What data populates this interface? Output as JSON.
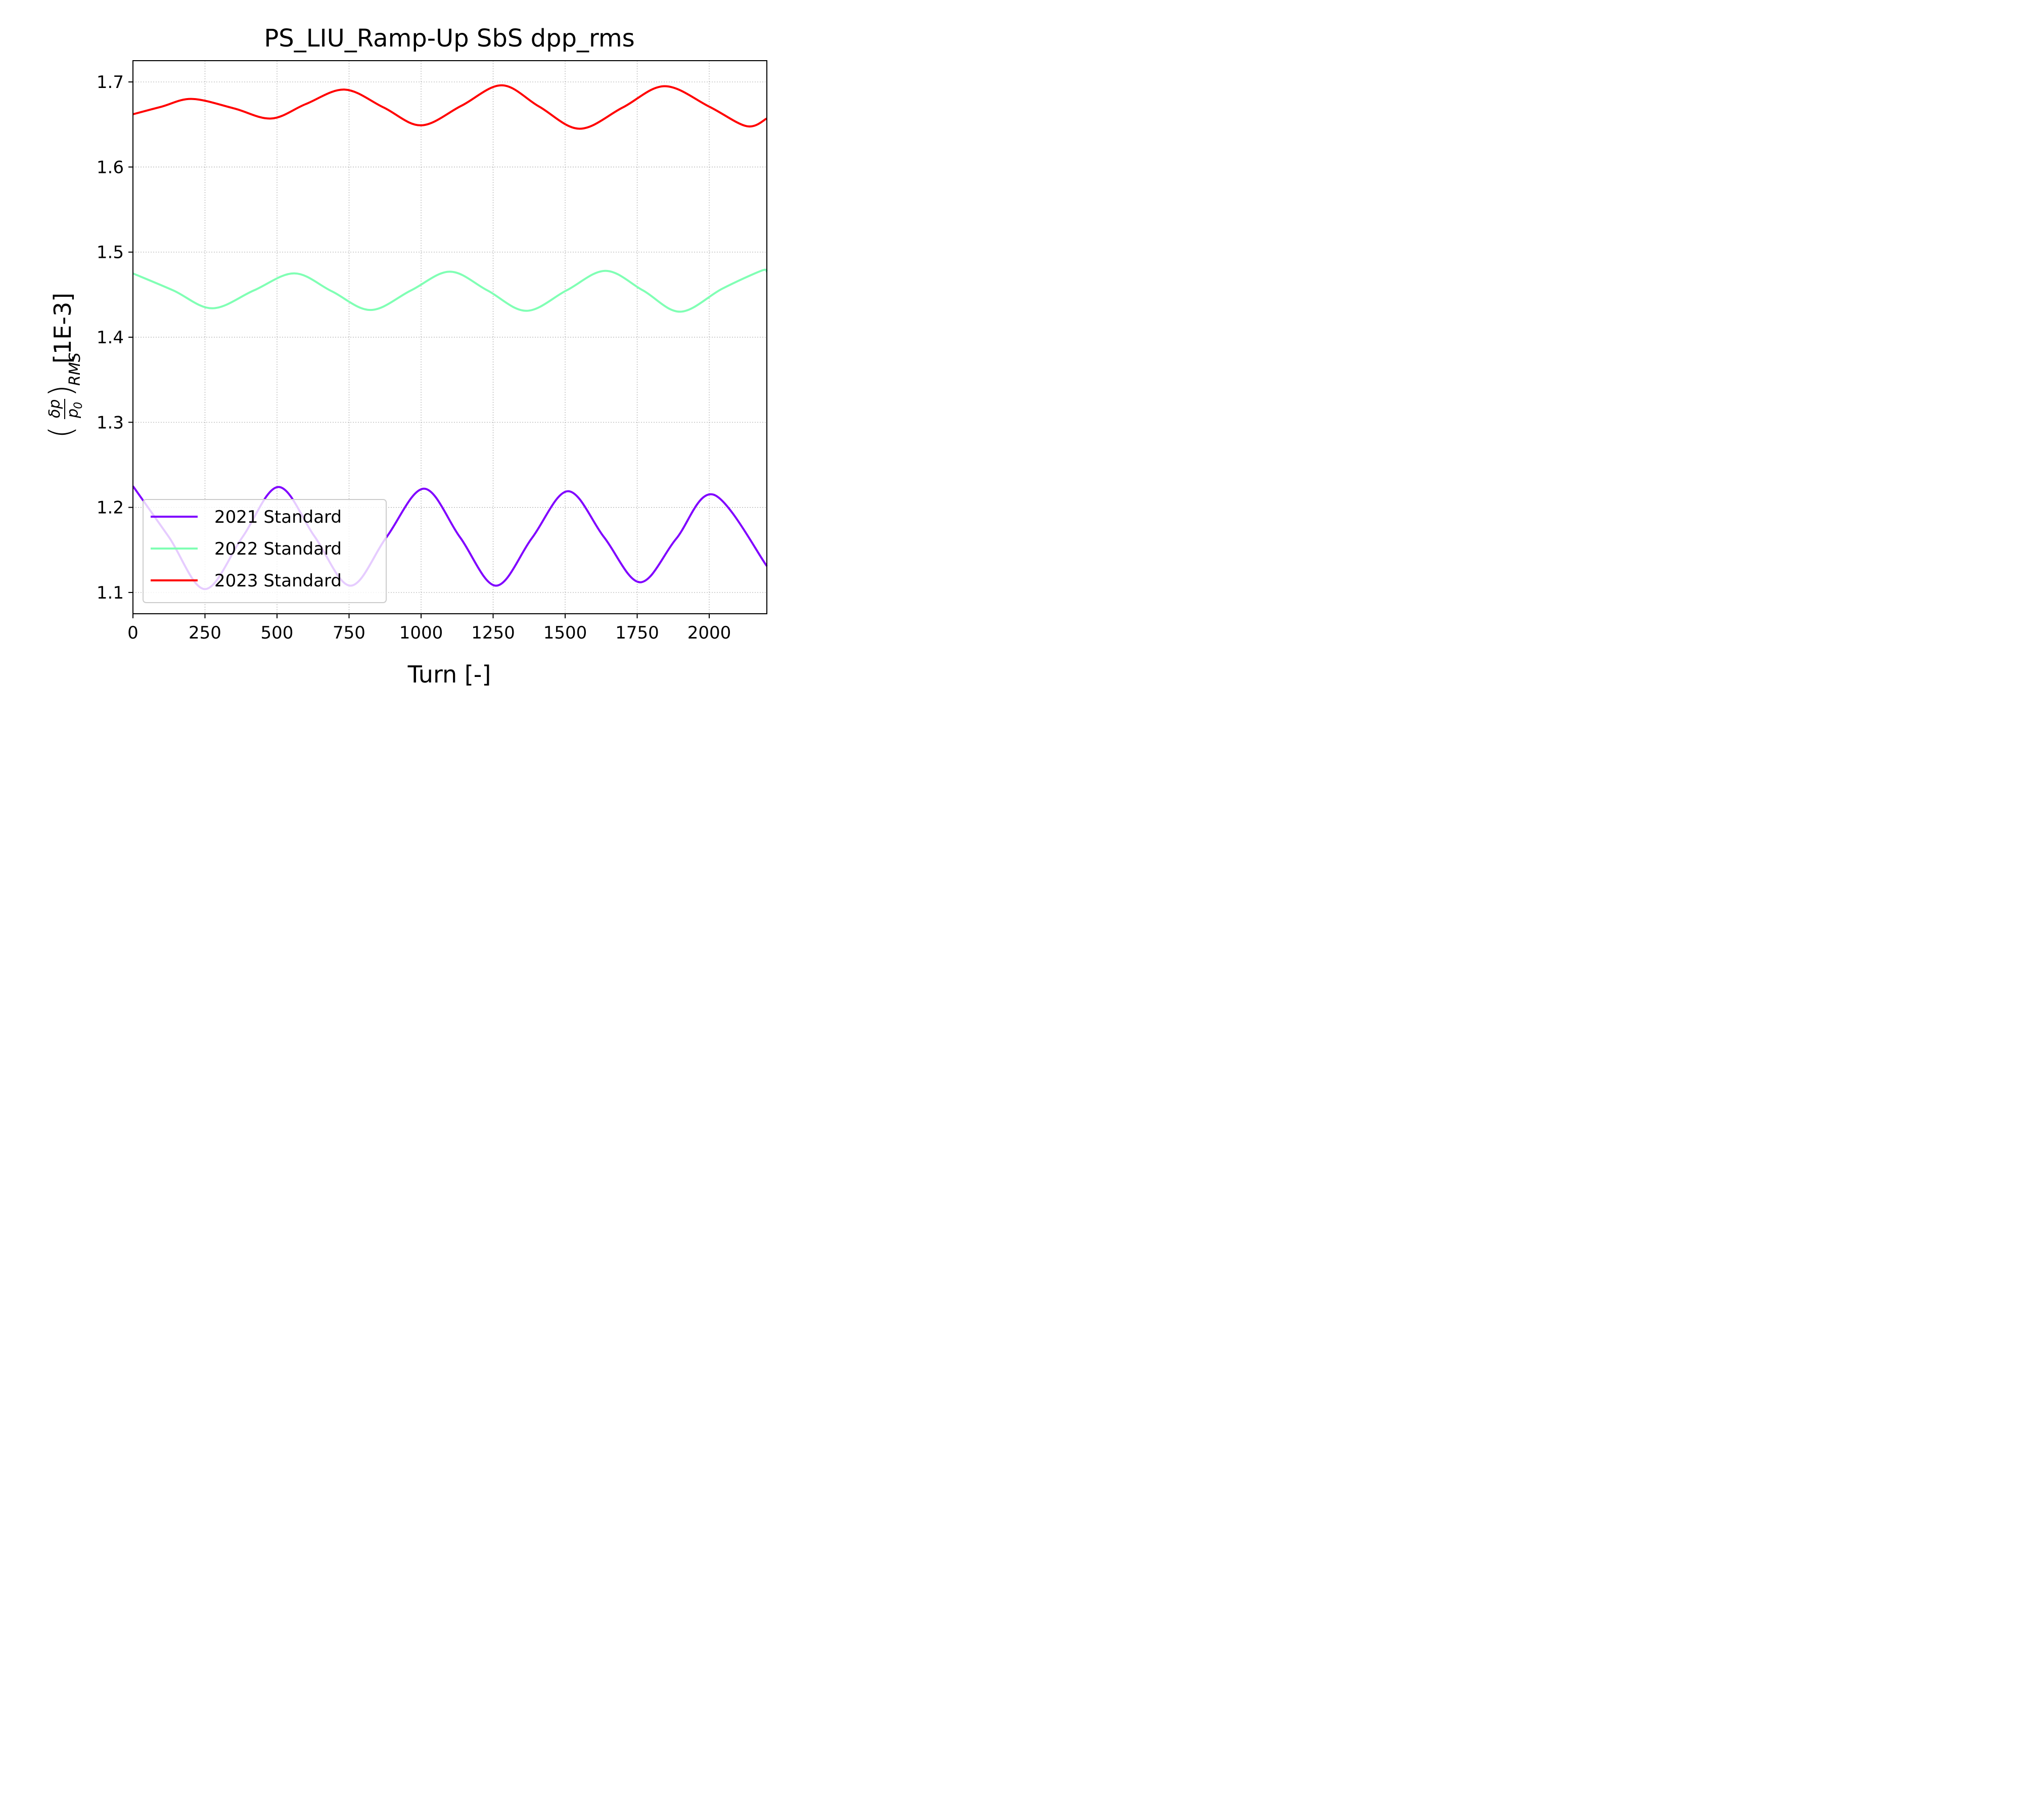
{
  "chart_data": {
    "type": "line",
    "title": "PS_LIU_Ramp-Up SbS dpp_rms",
    "xlabel": "Turn [-]",
    "ylabel": {
      "prefix": "(",
      "numerator": "δp",
      "denominator": "p",
      "denominator_sub": "0",
      "suffix": ")",
      "subscript": "RMS",
      "unit": "[1E-3]"
    },
    "xlim": [
      0,
      2200
    ],
    "ylim": [
      1.075,
      1.725
    ],
    "xticks": [
      0,
      250,
      500,
      750,
      1000,
      1250,
      1500,
      1750,
      2000
    ],
    "xtick_labels": [
      "0",
      "250",
      "500",
      "750",
      "1000",
      "1250",
      "1500",
      "1750",
      "2000"
    ],
    "yticks": [
      1.1,
      1.2,
      1.3,
      1.4,
      1.5,
      1.6,
      1.7
    ],
    "ytick_labels": [
      "1.1",
      "1.2",
      "1.3",
      "1.4",
      "1.5",
      "1.6",
      "1.7"
    ],
    "grid": true,
    "legend_position": "lower-left",
    "series": [
      {
        "name": "2021 Standard",
        "color": "#8000ff",
        "x": [
          0,
          125,
          250,
          380,
          505,
          630,
          755,
          880,
          1010,
          1135,
          1260,
          1385,
          1510,
          1635,
          1760,
          1885,
          2015,
          2200
        ],
        "y": [
          1.225,
          1.165,
          1.104,
          1.165,
          1.224,
          1.166,
          1.108,
          1.165,
          1.222,
          1.165,
          1.108,
          1.164,
          1.219,
          1.165,
          1.112,
          1.163,
          1.215,
          1.131
        ]
      },
      {
        "name": "2022 Standard",
        "color": "#80ffb4",
        "x": [
          0,
          140,
          275,
          420,
          560,
          690,
          825,
          965,
          1100,
          1230,
          1365,
          1505,
          1640,
          1770,
          1900,
          2045,
          2180,
          2200
        ],
        "y": [
          1.475,
          1.455,
          1.434,
          1.455,
          1.475,
          1.454,
          1.432,
          1.455,
          1.477,
          1.455,
          1.431,
          1.455,
          1.478,
          1.455,
          1.43,
          1.457,
          1.478,
          1.477
        ]
      },
      {
        "name": "2023 Standard",
        "color": "#ff0000",
        "x": [
          0,
          100,
          205,
          350,
          480,
          600,
          735,
          870,
          1000,
          1140,
          1280,
          1410,
          1550,
          1700,
          1845,
          2000,
          2130,
          2200
        ],
        "y": [
          1.662,
          1.671,
          1.68,
          1.669,
          1.657,
          1.674,
          1.691,
          1.67,
          1.649,
          1.672,
          1.696,
          1.671,
          1.645,
          1.67,
          1.695,
          1.671,
          1.648,
          1.657
        ]
      }
    ]
  }
}
